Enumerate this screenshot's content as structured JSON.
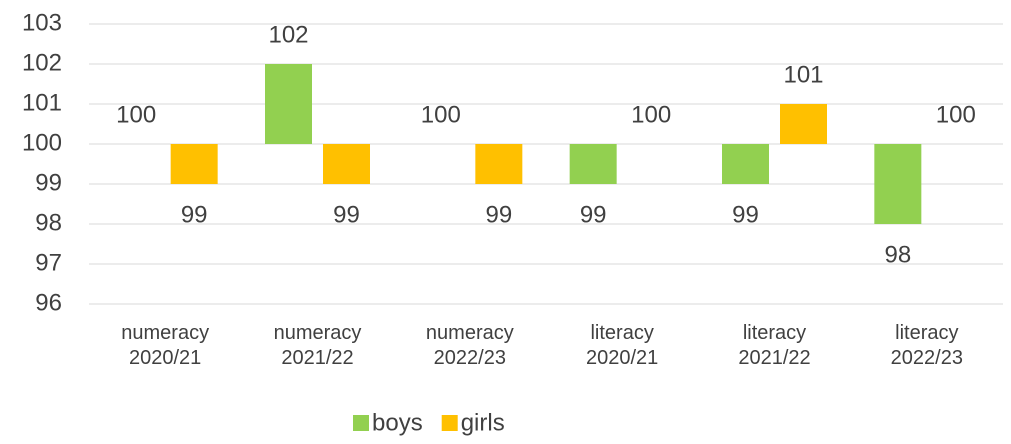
{
  "chart_data": {
    "type": "bar",
    "categories": [
      "numeracy 2020/21",
      "numeracy 2021/22",
      "numeracy 2022/23",
      "literacy 2020/21",
      "literacy 2021/22",
      "literacy 2022/23"
    ],
    "series": [
      {
        "name": "boys",
        "color": "#92d050",
        "values": [
          100,
          102,
          100,
          99,
          99,
          98
        ]
      },
      {
        "name": "girls",
        "color": "#ffc000",
        "values": [
          99,
          99,
          99,
          100,
          101,
          100
        ]
      }
    ],
    "ylim": [
      96,
      103
    ],
    "yticks": [
      96,
      97,
      98,
      99,
      100,
      101,
      102,
      103
    ],
    "bar_base": 100,
    "grid": true,
    "legend": "bottom"
  }
}
